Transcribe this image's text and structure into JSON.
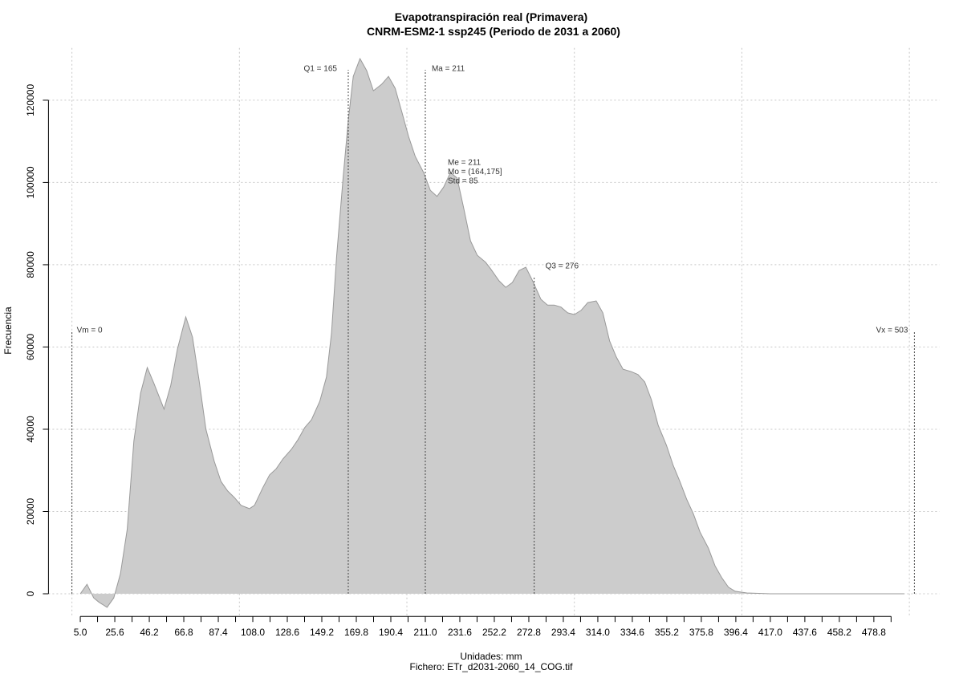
{
  "chart_data": {
    "type": "area",
    "title": "Evapotranspiración real (Primavera)",
    "subtitle": "CNRM-ESM2-1 ssp245 (Periodo de 2031 a 2060)",
    "xlabel": "Unidades: mm",
    "caption": "Fichero: ETr_d2031-2060_14_COG.tif",
    "ylabel": "Frecuencia",
    "color": "#cccccc",
    "line_color": "#999999",
    "grid": true,
    "x": [
      5,
      9,
      13,
      16,
      21,
      25,
      29,
      33,
      37,
      41,
      45,
      49,
      55,
      59,
      63,
      68,
      72,
      76,
      80,
      85,
      89,
      93,
      97,
      101,
      106,
      109,
      114,
      118,
      122,
      126,
      131,
      135,
      139,
      143,
      148,
      152,
      155,
      158,
      162,
      165,
      168,
      172,
      176,
      180,
      185,
      189,
      193,
      197,
      201,
      205,
      210,
      214,
      218,
      222,
      226,
      230,
      234,
      238,
      242,
      247,
      250,
      255,
      259,
      263,
      267,
      271,
      275,
      280,
      284,
      288,
      292,
      296,
      300,
      304,
      308,
      313,
      317,
      321,
      325,
      329,
      334,
      338,
      342,
      346,
      350,
      355,
      359,
      363,
      367,
      371,
      375,
      380,
      384,
      388,
      392,
      396,
      403,
      417,
      436,
      497
    ],
    "values": [
      0,
      2300,
      -1000,
      -2000,
      -3300,
      -1000,
      4900,
      15600,
      37100,
      48800,
      55000,
      51100,
      44900,
      50700,
      59500,
      67300,
      62400,
      51700,
      40000,
      32200,
      27300,
      25000,
      23400,
      21500,
      20700,
      21500,
      25800,
      28900,
      30400,
      32800,
      35100,
      37500,
      40400,
      42300,
      46800,
      52700,
      63400,
      81900,
      101500,
      115100,
      125800,
      130100,
      127200,
      122300,
      123900,
      125800,
      122900,
      117100,
      111200,
      106300,
      102400,
      98100,
      96600,
      98900,
      102400,
      101100,
      93600,
      85800,
      82300,
      80600,
      79000,
      76100,
      74500,
      75700,
      78600,
      79400,
      76100,
      71600,
      70200,
      70200,
      69700,
      68300,
      67900,
      68900,
      70800,
      71200,
      68300,
      61500,
      57600,
      54600,
      54000,
      53300,
      51500,
      47200,
      41000,
      36100,
      31200,
      27300,
      23000,
      19500,
      15000,
      11100,
      6800,
      3900,
      1600,
      600,
      200,
      0,
      0,
      0
    ],
    "xlim": [
      -14,
      518
    ],
    "ylim": [
      -5500,
      132700
    ],
    "xticks": [
      {
        "value": 5,
        "label": "5.0"
      },
      25.6,
      46.2,
      66.8,
      87.4,
      {
        "value": 108,
        "label": "108.0"
      },
      128.6,
      149.2,
      169.8,
      190.4,
      {
        "value": 211,
        "label": "211.0"
      },
      231.6,
      252.2,
      272.8,
      293.4,
      {
        "value": 314,
        "label": "314.0"
      },
      334.6,
      355.2,
      375.8,
      396.4,
      {
        "value": 417,
        "label": "417.0"
      },
      437.6,
      458.2,
      478.8
    ],
    "xminor_ticks": [
      15.3,
      35.9,
      56.5,
      77.1,
      97.7,
      118.3,
      138.9,
      159.5,
      180.1,
      200.7,
      221.3,
      241.9,
      262.5,
      283.1,
      303.7,
      324.3,
      344.9,
      365.5,
      386.1,
      406.7,
      427.3,
      447.9,
      468.5,
      489.1
    ],
    "xgrid": [
      0,
      100,
      200,
      300,
      400,
      500
    ],
    "yticks": [
      0,
      20000,
      40000,
      60000,
      80000,
      100000,
      120000
    ],
    "annotations": [
      {
        "x": 0,
        "label": "Vm = 0"
      },
      {
        "x": 165,
        "label": "Q1 = 165"
      },
      {
        "x": 211,
        "label": "Ma = 211"
      },
      {
        "x": 276,
        "label": "Q3 = 276"
      },
      {
        "x": 503,
        "label": "Vx = 503"
      }
    ],
    "stats": [
      "Me = 211",
      "Mo = (164,175]",
      "Std = 85"
    ]
  }
}
